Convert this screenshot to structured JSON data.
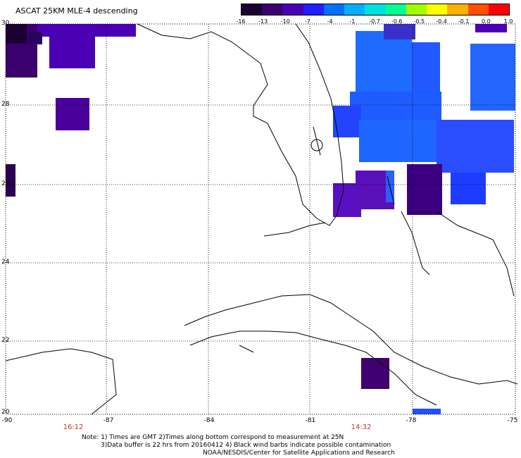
{
  "title": "ASCAT 25KM MLE-4 descending",
  "colorbar": {
    "labels": [
      "-16",
      "-13",
      "-10",
      "-7",
      "-4",
      "-1",
      "-0.7",
      "-0.6",
      "-0.5",
      "-0.4",
      "-0.1",
      "0.0",
      "1.0"
    ],
    "colors": [
      "#1a0033",
      "#3a006e",
      "#4b00b4",
      "#2020ff",
      "#0070ff",
      "#00b0ff",
      "#00e0e0",
      "#00ff90",
      "#a0ff00",
      "#ffff00",
      "#ffb000",
      "#ff5000",
      "#ff0000"
    ]
  },
  "axes": {
    "lat_labels": [
      "30",
      "28",
      "26",
      "24",
      "22",
      "20"
    ],
    "lon_labels": [
      "-90",
      "-87",
      "-84",
      "-81",
      "-78",
      "-75"
    ],
    "time_labels": [
      "16:12",
      "14:32"
    ]
  },
  "notes": [
    "Note: 1) Times are GMT 2)Times along bottom correspond to measurement at 25N",
    "3)Data buffer is 22 hrs from 20160412 4) Black wind barbs indicate possible contamination",
    "NOAA/NESDIS/Center for Satellite Applications and Research"
  ],
  "colors": {
    "land_outline": "#000000",
    "grid": "#000000",
    "time_text": "#c0392b"
  }
}
